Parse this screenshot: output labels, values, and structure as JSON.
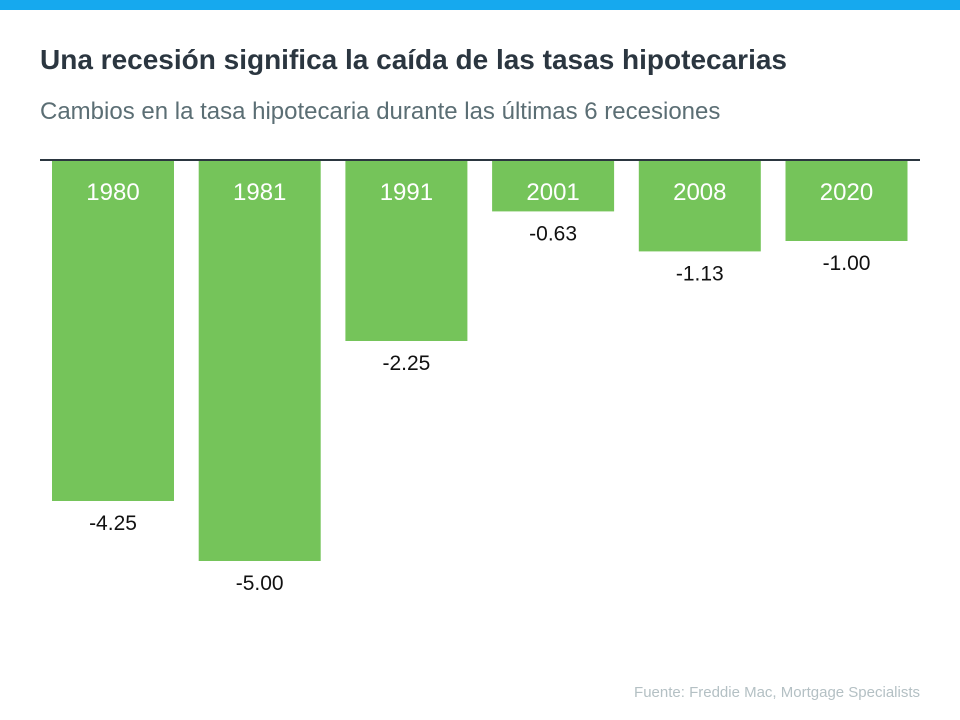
{
  "title": "Una recesión significa la caída de las tasas hipotecarias",
  "subtitle": "Cambios en la tasa hipotecaria durante las últimas 6 recesiones",
  "source": "Fuente:  Freddie Mac, Mortgage Specialists",
  "colors": {
    "bar": "#75c45a",
    "accent": "#16a9ee",
    "axis": "#2b3640"
  },
  "chart_data": {
    "type": "bar",
    "categories": [
      "1980",
      "1981",
      "1991",
      "2001",
      "2008",
      "2020"
    ],
    "values": [
      -4.25,
      -5.0,
      -2.25,
      -0.63,
      -1.13,
      -1.0
    ],
    "labels": [
      "-4.25",
      "-5.00",
      "-2.25",
      "-0.63",
      "-1.13",
      "-1.00"
    ],
    "ylim": [
      -5,
      0
    ],
    "grid": false,
    "legend": "none"
  }
}
